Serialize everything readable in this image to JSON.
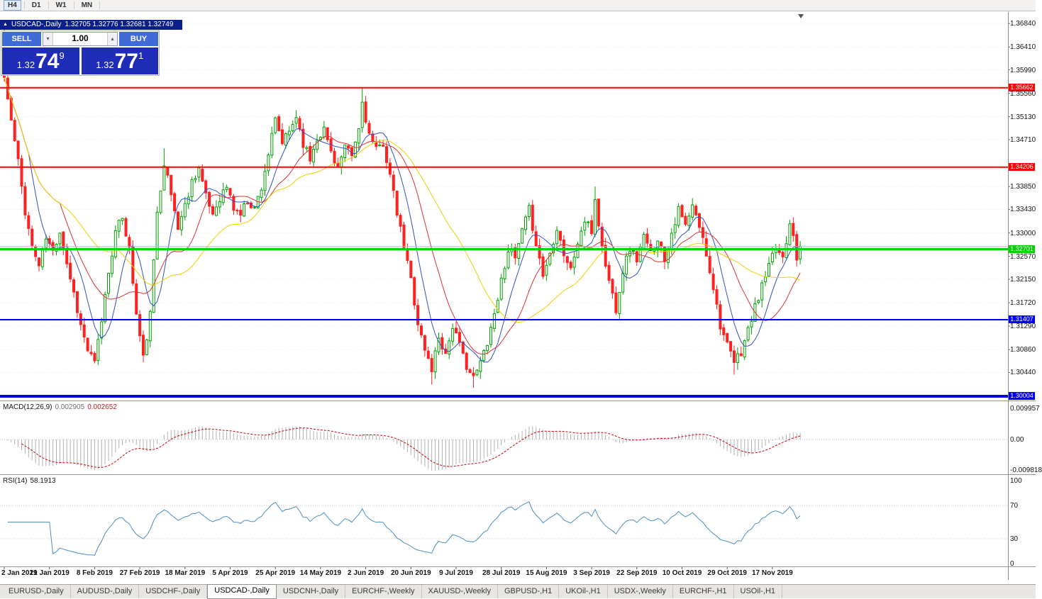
{
  "toolbar": {
    "timeframes": [
      {
        "label": "H4",
        "active": true
      },
      {
        "label": "D1",
        "active": false
      },
      {
        "label": "W1",
        "active": false
      },
      {
        "label": "MN",
        "active": false
      }
    ]
  },
  "icons": {
    "window": "▲",
    "volume_down": "▾",
    "volume_up": "▴"
  },
  "chart": {
    "titlebar": {
      "title": "USDCAD-,Daily",
      "ohlc": "1.32705 1.32776 1.32681 1.32749"
    },
    "trade_panel": {
      "sell_label": "SELL",
      "buy_label": "BUY",
      "volume": "1.00",
      "sell_price": {
        "prefix": "1.32",
        "main": "74",
        "sup": "9"
      },
      "buy_price": {
        "prefix": "1.32",
        "main": "77",
        "sup": "1"
      }
    },
    "price_axis": [
      "1.36840",
      "1.36410",
      "1.35990",
      "1.35560",
      "1.35130",
      "1.34710",
      "1.33850",
      "1.33430",
      "1.33000",
      "1.32570",
      "1.32150",
      "1.31720",
      "1.31290",
      "1.30860",
      "1.30440"
    ],
    "hlines": [
      {
        "label": "1.35662",
        "price": 1.35662,
        "color": "#ff0000",
        "width": 2
      },
      {
        "label": "1.34206",
        "price": 1.34206,
        "color": "#ff0000",
        "width": 2
      },
      {
        "label": "1.32701",
        "price": 1.32701,
        "color": "#00d400",
        "width": 3
      },
      {
        "label": "1.31407",
        "price": 1.31407,
        "color": "#0000ff",
        "width": 2
      },
      {
        "label": "1.30004",
        "price": 1.30004,
        "color": "#0000ee",
        "width": 4
      }
    ],
    "current_price": 1.32749,
    "dates": [
      "2 Jan 2019",
      "21 Jan 2019",
      "8 Feb 2019",
      "27 Feb 2019",
      "18 Mar 2019",
      "5 Apr 2019",
      "25 Apr 2019",
      "14 May 2019",
      "2 Jun 2019",
      "20 Jun 2019",
      "9 Jul 2019",
      "28 Jul 2019",
      "15 Aug 2019",
      "3 Sep 2019",
      "22 Sep 2019",
      "10 Oct 2019",
      "29 Oct 2019",
      "17 Nov 2019"
    ]
  },
  "macd": {
    "name": "MACD(12,26,9)",
    "value_main": "0.002905",
    "value_signal": "0.002652",
    "axis": [
      "0.009957",
      "0.00",
      "-0.009818"
    ]
  },
  "rsi": {
    "name": "RSI(14)",
    "value": "58.1913",
    "axis": [
      "100",
      "70",
      "30",
      "0"
    ]
  },
  "tabs": [
    {
      "label": "EURUSD-,Daily",
      "active": false
    },
    {
      "label": "AUDUSD-,Daily",
      "active": false
    },
    {
      "label": "USDCHF-,Daily",
      "active": false
    },
    {
      "label": "USDCAD-,Daily",
      "active": true
    },
    {
      "label": "USDCNH-,Daily",
      "active": false
    },
    {
      "label": "EURCHF-,Weekly",
      "active": false
    },
    {
      "label": "XAUUSD-,Weekly",
      "active": false
    },
    {
      "label": "GBPUSD-,H1",
      "active": false
    },
    {
      "label": "UKOil-,H1",
      "active": false
    },
    {
      "label": "USDX-,Weekly",
      "active": false
    },
    {
      "label": "EURCHF-,H1",
      "active": false
    },
    {
      "label": "USOil-,H1",
      "active": false
    }
  ],
  "chart_data": {
    "type": "candlestick",
    "symbol": "USDCAD",
    "timeframe": "Daily",
    "candle_count": 230,
    "visible_price_range": [
      1.299,
      1.3705
    ],
    "last_candle_ohlc": {
      "open": 1.32705,
      "high": 1.32776,
      "low": 1.32681,
      "close": 1.32749
    },
    "bull_color": "#00a000",
    "bear_color": "#ff2020",
    "price_path": [
      [
        0,
        1.3585
      ],
      [
        2,
        1.3505
      ],
      [
        4,
        1.343
      ],
      [
        6,
        1.334
      ],
      [
        8,
        1.3275
      ],
      [
        10,
        1.324
      ],
      [
        12,
        1.329
      ],
      [
        14,
        1.3265
      ],
      [
        16,
        1.3305
      ],
      [
        18,
        1.3245
      ],
      [
        20,
        1.319
      ],
      [
        22,
        1.313
      ],
      [
        24,
        1.3085
      ],
      [
        26,
        1.306
      ],
      [
        28,
        1.314
      ],
      [
        30,
        1.323
      ],
      [
        32,
        1.33
      ],
      [
        34,
        1.333
      ],
      [
        36,
        1.327
      ],
      [
        38,
        1.315
      ],
      [
        40,
        1.307
      ],
      [
        42,
        1.315
      ],
      [
        44,
        1.334
      ],
      [
        46,
        1.343
      ],
      [
        48,
        1.337
      ],
      [
        50,
        1.331
      ],
      [
        52,
        1.335
      ],
      [
        54,
        1.3395
      ],
      [
        56,
        1.342
      ],
      [
        58,
        1.3365
      ],
      [
        60,
        1.3335
      ],
      [
        62,
        1.3365
      ],
      [
        64,
        1.3385
      ],
      [
        66,
        1.3345
      ],
      [
        68,
        1.3335
      ],
      [
        70,
        1.336
      ],
      [
        72,
        1.3345
      ],
      [
        74,
        1.3385
      ],
      [
        76,
        1.3445
      ],
      [
        78,
        1.3505
      ],
      [
        80,
        1.3465
      ],
      [
        82,
        1.3485
      ],
      [
        84,
        1.3515
      ],
      [
        86,
        1.3465
      ],
      [
        88,
        1.3435
      ],
      [
        90,
        1.3475
      ],
      [
        92,
        1.349
      ],
      [
        94,
        1.345
      ],
      [
        96,
        1.342
      ],
      [
        98,
        1.3455
      ],
      [
        100,
        1.344
      ],
      [
        102,
        1.349
      ],
      [
        103,
        1.354
      ],
      [
        105,
        1.348
      ],
      [
        107,
        1.345
      ],
      [
        109,
        1.3465
      ],
      [
        111,
        1.3405
      ],
      [
        113,
        1.3335
      ],
      [
        115,
        1.3275
      ],
      [
        117,
        1.3215
      ],
      [
        119,
        1.3135
      ],
      [
        121,
        1.3085
      ],
      [
        123,
        1.305
      ],
      [
        125,
        1.311
      ],
      [
        127,
        1.3078
      ],
      [
        129,
        1.313
      ],
      [
        131,
        1.3092
      ],
      [
        133,
        1.3058
      ],
      [
        135,
        1.3032
      ],
      [
        137,
        1.3062
      ],
      [
        139,
        1.3102
      ],
      [
        141,
        1.3152
      ],
      [
        143,
        1.3212
      ],
      [
        145,
        1.3272
      ],
      [
        147,
        1.3252
      ],
      [
        149,
        1.3302
      ],
      [
        151,
        1.3342
      ],
      [
        153,
        1.3282
      ],
      [
        155,
        1.3222
      ],
      [
        157,
        1.3262
      ],
      [
        159,
        1.3312
      ],
      [
        161,
        1.3262
      ],
      [
        163,
        1.3232
      ],
      [
        165,
        1.3282
      ],
      [
        167,
        1.3322
      ],
      [
        169,
        1.3302
      ],
      [
        170,
        1.3362
      ],
      [
        172,
        1.3272
      ],
      [
        174,
        1.3212
      ],
      [
        176,
        1.3162
      ],
      [
        178,
        1.3232
      ],
      [
        180,
        1.3272
      ],
      [
        182,
        1.3252
      ],
      [
        184,
        1.3292
      ],
      [
        186,
        1.3262
      ],
      [
        188,
        1.3292
      ],
      [
        190,
        1.3252
      ],
      [
        192,
        1.3302
      ],
      [
        194,
        1.3342
      ],
      [
        196,
        1.3312
      ],
      [
        198,
        1.3347
      ],
      [
        200,
        1.3312
      ],
      [
        202,
        1.3262
      ],
      [
        204,
        1.3202
      ],
      [
        206,
        1.3132
      ],
      [
        208,
        1.3092
      ],
      [
        210,
        1.3062
      ],
      [
        212,
        1.3082
      ],
      [
        214,
        1.3122
      ],
      [
        216,
        1.3162
      ],
      [
        218,
        1.3202
      ],
      [
        220,
        1.3237
      ],
      [
        222,
        1.3272
      ],
      [
        224,
        1.3257
      ],
      [
        225,
        1.3287
      ],
      [
        226,
        1.3322
      ],
      [
        227,
        1.3302
      ],
      [
        228,
        1.3257
      ],
      [
        229,
        1.3275
      ]
    ],
    "spikes": [
      {
        "i": 0,
        "high": 1.3688
      },
      {
        "i": 46,
        "high": 1.3455
      },
      {
        "i": 103,
        "high": 1.3566
      },
      {
        "i": 123,
        "low": 1.3022
      },
      {
        "i": 135,
        "low": 1.3016
      },
      {
        "i": 170,
        "high": 1.3385
      },
      {
        "i": 210,
        "low": 1.304
      }
    ],
    "moving_averages": [
      {
        "period": 8,
        "color": "#3050c8"
      },
      {
        "period": 17,
        "color": "#e03030"
      },
      {
        "period": 34,
        "color": "#ecd000"
      }
    ],
    "macd_params": {
      "fast": 12,
      "slow": 26,
      "signal": 9,
      "histogram_color": "#b0b0b0",
      "signal_color": "#cc0000"
    },
    "rsi_params": {
      "period": 14,
      "color": "#4a8fc0",
      "levels": [
        70,
        30
      ]
    }
  }
}
